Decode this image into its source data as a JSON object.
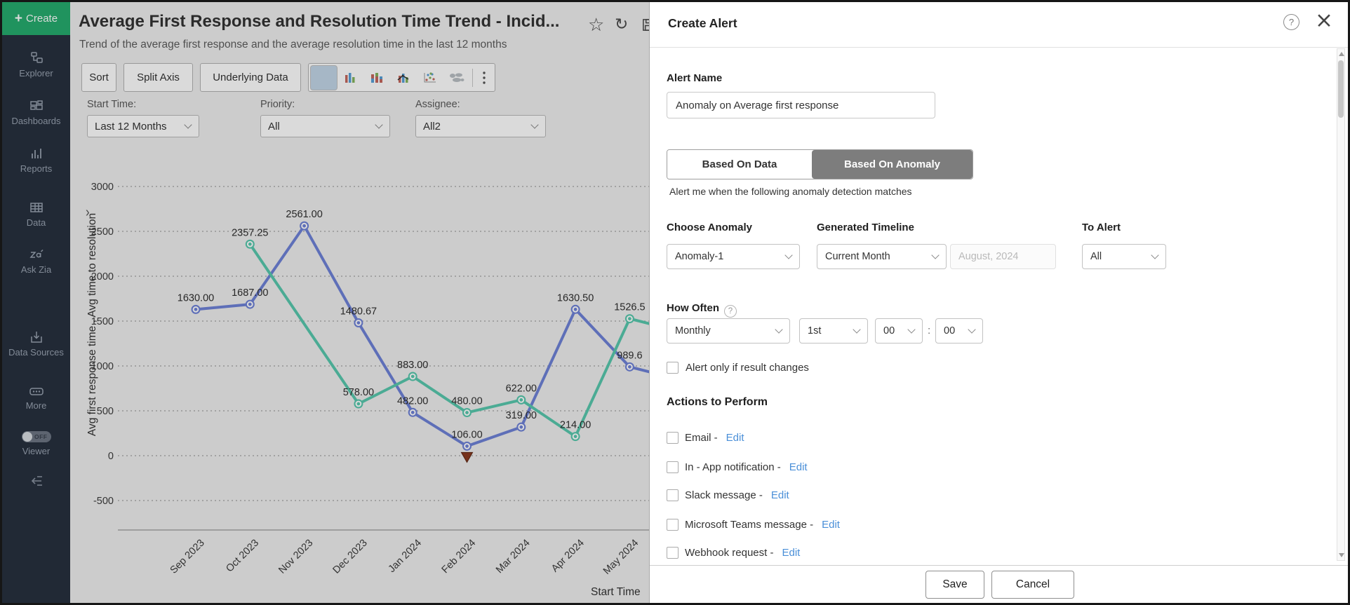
{
  "sidebar": {
    "create": {
      "label": "Create",
      "icon": "plus-icon"
    },
    "items": [
      {
        "icon": "explorer-icon",
        "label": "Explorer"
      },
      {
        "icon": "dashboards-icon",
        "label": "Dashboards"
      },
      {
        "icon": "reports-icon",
        "label": "Reports"
      },
      {
        "icon": "data-icon",
        "label": "Data"
      },
      {
        "icon": "ask-zia-icon",
        "label": "Ask Zia"
      },
      {
        "icon": "data-sources-icon",
        "label": "Data Sources"
      },
      {
        "icon": "more-icon",
        "label": "More"
      }
    ],
    "viewer_toggle": {
      "label": "Viewer",
      "state": "OFF"
    }
  },
  "report_header": {
    "title": "Average First Response and Resolution Time Trend - Incid...",
    "subtitle": "Trend of the average first response and the average resolution time in the last 12 months",
    "icons": [
      "favorite-star-icon",
      "refresh-icon",
      "save-icon"
    ]
  },
  "toolbar": {
    "buttons": [
      "Sort",
      "Split Axis",
      "Underlying Data"
    ],
    "chart_types": [
      "pie-chart-icon",
      "line-chart-icon",
      "bar-chart-icon",
      "stacked-bar-chart-icon",
      "combo-chart-icon",
      "scatter-chart-icon",
      "map-chart-icon"
    ],
    "selected_chart_type": "line-chart-icon",
    "more_icon": "kebab-menu-icon"
  },
  "filters": [
    {
      "label": "Start Time:",
      "value": "Last 12 Months"
    },
    {
      "label": "Priority:",
      "value": "All"
    },
    {
      "label": "Assignee:",
      "value": "All2"
    }
  ],
  "chart_data": {
    "type": "line",
    "x": [
      "Sep 2023",
      "Oct 2023",
      "Nov 2023",
      "Dec 2023",
      "Jan 2024",
      "Feb 2024",
      "Mar 2024",
      "Apr 2024",
      "May 2024"
    ],
    "xlabel": "Start Time",
    "ylabel": "Avg first response time , Avg time to resolution",
    "ylim": [
      -500,
      3000
    ],
    "ytick_step": 500,
    "grid": true,
    "legend": "none",
    "series": [
      {
        "name": "Avg first response time",
        "color": "#6f82d8",
        "values": [
          1630,
          1687,
          2561,
          1480.67,
          482,
          106,
          319,
          1630.5,
          989.6
        ],
        "labels": [
          "1630.00",
          "1687.00",
          "2561.00",
          "1480.67",
          "482.00",
          "106.00",
          "319.00",
          "1630.50",
          "989.6"
        ]
      },
      {
        "name": "Avg time to resolution",
        "color": "#58c9ae",
        "values": [
          null,
          2357.25,
          null,
          578,
          883,
          480,
          622,
          214,
          1526.5
        ],
        "labels": [
          null,
          "2357.25",
          null,
          "578.00",
          "883.00",
          "480.00",
          "622.00",
          "214.00",
          "1526.5"
        ]
      }
    ],
    "anomaly_marker": {
      "x": "Feb 2024",
      "series": "Avg first response time",
      "value": 106,
      "color": "#8a3a20"
    }
  },
  "panel": {
    "title": "Create Alert",
    "icons": [
      "help-icon",
      "close-icon"
    ],
    "alert_name": {
      "label": "Alert Name",
      "value": "Anomaly on Average first response"
    },
    "tabs": [
      {
        "label": "Based On Data",
        "selected": false
      },
      {
        "label": "Based On Anomaly",
        "selected": true
      }
    ],
    "hint": "Alert me when the following anomaly detection matches",
    "fields": {
      "choose_anomaly": {
        "label": "Choose Anomaly",
        "value": "Anomaly-1"
      },
      "generated_timeline": {
        "label": "Generated Timeline",
        "value": "Current Month",
        "date_value": "August, 2024"
      },
      "to_alert": {
        "label": "To Alert",
        "value": "All"
      }
    },
    "how_often": {
      "label": "How Often",
      "frequency": "Monthly",
      "day": "1st",
      "hour": "00",
      "colon": ":",
      "minute": "00"
    },
    "alert_only_label": "Alert only if result changes",
    "actions": {
      "heading": "Actions to Perform",
      "edit": "Edit",
      "items": [
        "Email -",
        "In - App notification -",
        "Slack message -",
        "Microsoft Teams message -",
        "Webhook request -"
      ]
    },
    "buttons": {
      "save": "Save",
      "cancel": "Cancel"
    }
  }
}
